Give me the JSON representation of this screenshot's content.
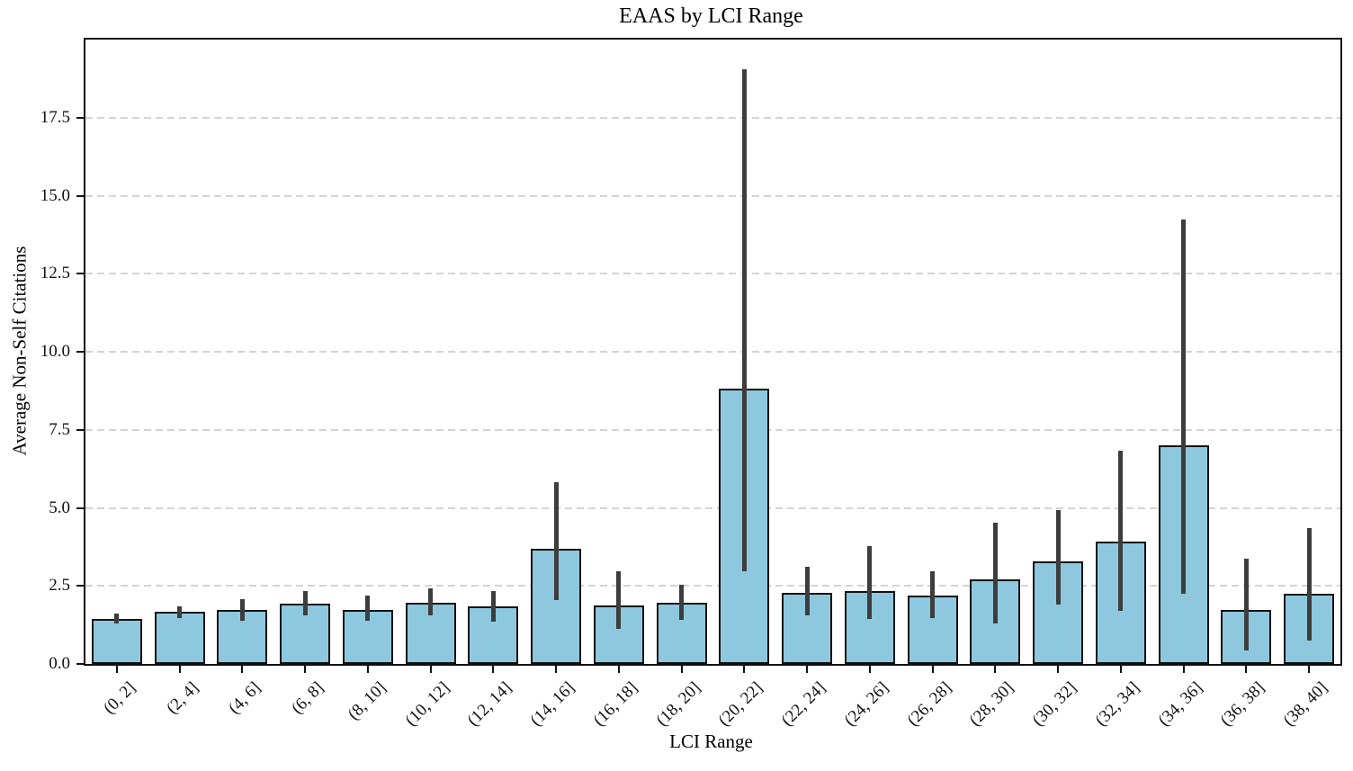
{
  "chart_data": {
    "type": "bar",
    "title": "EAAS by LCI Range",
    "xlabel": "LCI Range",
    "ylabel": "Average Non-Self Citations",
    "categories": [
      "(0, 2]",
      "(2, 4]",
      "(4, 6]",
      "(6, 8]",
      "(8, 10]",
      "(10, 12]",
      "(12, 14]",
      "(14, 16]",
      "(16, 18]",
      "(18, 20]",
      "(20, 22]",
      "(22, 24]",
      "(24, 26]",
      "(26, 28]",
      "(28, 30]",
      "(30, 32]",
      "(32, 34]",
      "(34, 36]",
      "(36, 38]",
      "(38, 40]"
    ],
    "values": [
      1.45,
      1.68,
      1.72,
      1.92,
      1.73,
      1.97,
      1.83,
      3.68,
      1.87,
      1.97,
      8.83,
      2.28,
      2.33,
      2.18,
      2.7,
      3.28,
      3.92,
      7.0,
      1.73,
      2.25
    ],
    "series": [
      {
        "name": "Average Non-Self Citations",
        "values": [
          1.45,
          1.68,
          1.72,
          1.92,
          1.73,
          1.97,
          1.83,
          3.68,
          1.87,
          1.97,
          8.83,
          2.28,
          2.33,
          2.18,
          2.7,
          3.28,
          3.92,
          7.0,
          1.73,
          2.25
        ]
      }
    ],
    "error_low": [
      1.3,
      1.48,
      1.38,
      1.55,
      1.38,
      1.57,
      1.35,
      2.05,
      1.12,
      1.42,
      2.97,
      1.57,
      1.43,
      1.48,
      1.3,
      1.88,
      1.7,
      2.25,
      0.43,
      0.75
    ],
    "error_high": [
      1.62,
      1.85,
      2.07,
      2.32,
      2.18,
      2.43,
      2.32,
      5.83,
      2.97,
      2.55,
      19.05,
      3.12,
      3.77,
      2.98,
      4.53,
      4.92,
      6.83,
      14.25,
      3.38,
      4.35
    ],
    "yticks": [
      {
        "label": "0.0",
        "value": 0.0
      },
      {
        "label": "2.5",
        "value": 2.5
      },
      {
        "label": "5.0",
        "value": 5.0
      },
      {
        "label": "7.5",
        "value": 7.5
      },
      {
        "label": "10.0",
        "value": 10.0
      },
      {
        "label": "12.5",
        "value": 12.5
      },
      {
        "label": "15.0",
        "value": 15.0
      },
      {
        "label": "17.5",
        "value": 17.5
      }
    ],
    "ylim": [
      0,
      20
    ],
    "grid": "horizontal-dashed",
    "legend": "none",
    "colors": {
      "bar_fill": "#8ec8df",
      "bar_edge": "#111111",
      "error_bar": "#3d3d3d",
      "gridline": "#d4d4d4",
      "spine": "#111111",
      "background": "#ffffff"
    }
  }
}
